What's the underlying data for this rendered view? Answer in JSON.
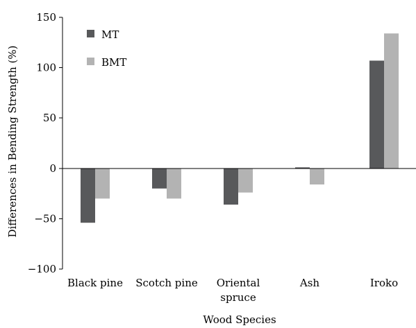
{
  "chart_data": {
    "type": "bar",
    "title": "",
    "xlabel": "Wood Species",
    "ylabel": "Differences in Bending Strength (%)",
    "categories": [
      [
        "Black pine"
      ],
      [
        "Scotch pine"
      ],
      [
        "Oriental",
        "spruce"
      ],
      [
        "Ash"
      ],
      [
        "Iroko"
      ]
    ],
    "series": [
      {
        "name": "MT",
        "color": "#58595b",
        "values": [
          -54,
          -20,
          -36,
          1,
          107
        ]
      },
      {
        "name": "BMT",
        "color": "#b3b3b3",
        "values": [
          -30,
          -30,
          -24,
          -16,
          134
        ]
      }
    ],
    "ylim": [
      -100,
      150
    ],
    "yticks": [
      -100,
      -50,
      0,
      50,
      100,
      150
    ],
    "ytick_labels": [
      "−100",
      "−50",
      "0",
      "50",
      "100",
      "150"
    ],
    "grid": false,
    "legend_position": "top-left"
  }
}
